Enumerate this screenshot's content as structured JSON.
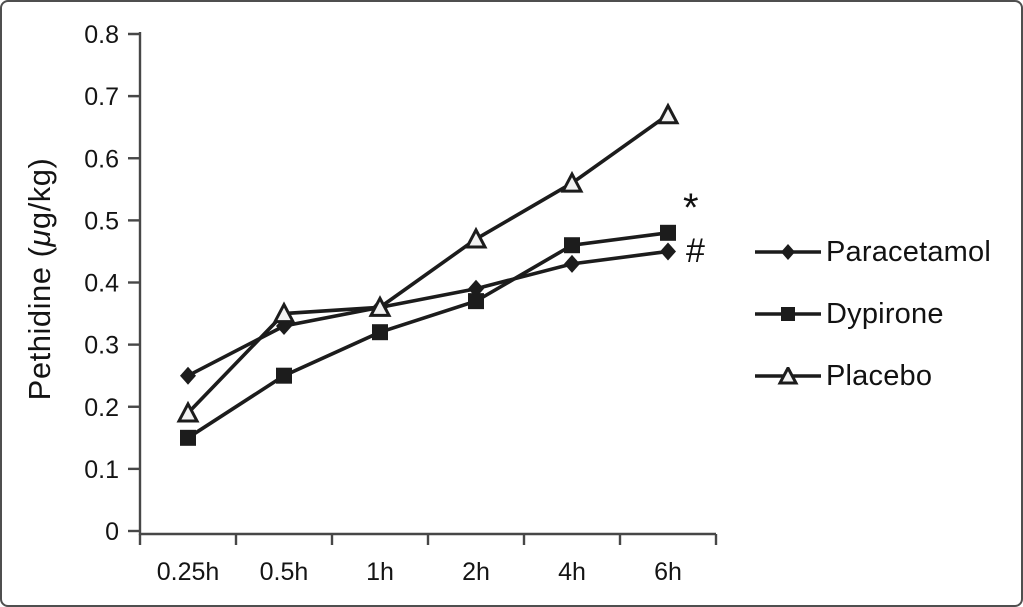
{
  "chart_data": {
    "type": "line",
    "title": "",
    "xlabel": "",
    "ylabel": "Pethidine (μg/kg)",
    "ylabel_parts": {
      "pre": "Pethidine (",
      "mu": "μ",
      "post": "g/kg)"
    },
    "categories": [
      "0.25h",
      "0.5h",
      "1h",
      "2h",
      "4h",
      "6h"
    ],
    "yticks": [
      "0.8",
      "0.7",
      "0.6",
      "0.5",
      "0.4",
      "0.3",
      "0.2",
      "0.1",
      "0"
    ],
    "ylim": [
      0,
      0.8
    ],
    "grid": false,
    "legend_position": "right",
    "series": [
      {
        "name": "Paracetamol",
        "marker": "diamond-filled",
        "color": "#1c1c1c",
        "values": [
          0.25,
          0.33,
          0.36,
          0.39,
          0.43,
          0.45
        ]
      },
      {
        "name": "Dypirone",
        "marker": "square-filled",
        "color": "#1c1c1c",
        "values": [
          0.15,
          0.25,
          0.32,
          0.37,
          0.46,
          0.48
        ]
      },
      {
        "name": "Placebo",
        "marker": "triangle-open",
        "color": "#1c1c1c",
        "values": [
          0.19,
          0.35,
          0.36,
          0.47,
          0.56,
          0.67
        ]
      }
    ],
    "annotations": [
      {
        "text": "*",
        "target_series": "Dypirone",
        "position": "right-of-last-point"
      },
      {
        "text": "#",
        "target_series": "Paracetamol",
        "position": "right-of-last-point"
      }
    ]
  },
  "colors": {
    "background": "#ffffff",
    "border": "#4f4f4f",
    "axis": "#474747",
    "text": "#141414",
    "line": "#1c1c1c",
    "triangle_fill": "#f2f2f2"
  }
}
